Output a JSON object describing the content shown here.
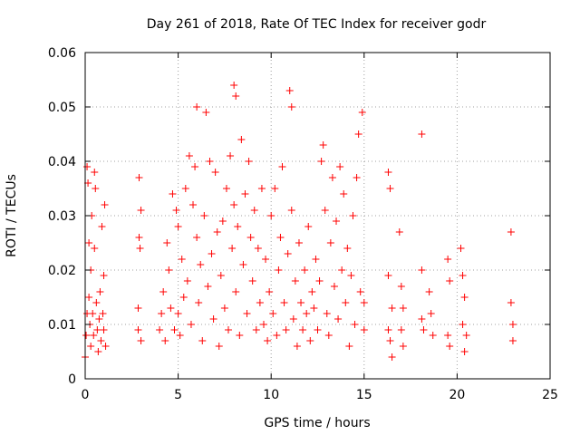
{
  "chart_data": {
    "type": "scatter",
    "title": "Day 261 of 2018, Rate Of TEC Index for receiver godr",
    "xlabel": "GPS time / hours",
    "ylabel": "ROTI / TECUs",
    "xlim": [
      0,
      25
    ],
    "ylim": [
      0,
      0.06
    ],
    "xticks": [
      0,
      5,
      10,
      15,
      20,
      25
    ],
    "xtick_labels": [
      "0",
      "5",
      "10",
      "15",
      "20",
      "25"
    ],
    "yticks": [
      0,
      0.01,
      0.02,
      0.03,
      0.04,
      0.05,
      0.06
    ],
    "ytick_labels": [
      "0",
      "0.01",
      "0.02",
      "0.03",
      "0.04",
      "0.05",
      "0.06"
    ],
    "grid": true,
    "marker": "plus",
    "marker_color": "#ff0000",
    "series": [
      {
        "name": "ROTI",
        "points": [
          [
            0.0,
            0.004
          ],
          [
            0.05,
            0.008
          ],
          [
            0.1,
            0.012
          ],
          [
            0.1,
            0.039
          ],
          [
            0.15,
            0.036
          ],
          [
            0.2,
            0.025
          ],
          [
            0.2,
            0.015
          ],
          [
            0.25,
            0.01
          ],
          [
            0.3,
            0.006
          ],
          [
            0.3,
            0.02
          ],
          [
            0.35,
            0.03
          ],
          [
            0.4,
            0.012
          ],
          [
            0.45,
            0.008
          ],
          [
            0.5,
            0.038
          ],
          [
            0.5,
            0.024
          ],
          [
            0.55,
            0.035
          ],
          [
            0.6,
            0.014
          ],
          [
            0.65,
            0.009
          ],
          [
            0.7,
            0.005
          ],
          [
            0.75,
            0.011
          ],
          [
            0.8,
            0.016
          ],
          [
            0.85,
            0.007
          ],
          [
            0.9,
            0.028
          ],
          [
            0.95,
            0.012
          ],
          [
            1.0,
            0.009
          ],
          [
            1.0,
            0.019
          ],
          [
            1.05,
            0.032
          ],
          [
            1.1,
            0.006
          ],
          [
            2.85,
            0.013
          ],
          [
            2.85,
            0.009
          ],
          [
            2.9,
            0.037
          ],
          [
            2.9,
            0.026
          ],
          [
            2.95,
            0.024
          ],
          [
            3.0,
            0.007
          ],
          [
            3.0,
            0.031
          ],
          [
            4.0,
            0.009
          ],
          [
            4.1,
            0.012
          ],
          [
            4.2,
            0.016
          ],
          [
            4.3,
            0.007
          ],
          [
            4.4,
            0.025
          ],
          [
            4.5,
            0.02
          ],
          [
            4.6,
            0.013
          ],
          [
            4.7,
            0.034
          ],
          [
            4.8,
            0.009
          ],
          [
            4.9,
            0.031
          ],
          [
            5.0,
            0.028
          ],
          [
            5.0,
            0.012
          ],
          [
            5.1,
            0.008
          ],
          [
            5.2,
            0.022
          ],
          [
            5.3,
            0.015
          ],
          [
            5.4,
            0.035
          ],
          [
            5.5,
            0.018
          ],
          [
            5.6,
            0.041
          ],
          [
            5.7,
            0.01
          ],
          [
            5.8,
            0.032
          ],
          [
            5.9,
            0.039
          ],
          [
            6.0,
            0.05
          ],
          [
            6.0,
            0.026
          ],
          [
            6.1,
            0.014
          ],
          [
            6.2,
            0.021
          ],
          [
            6.3,
            0.007
          ],
          [
            6.4,
            0.03
          ],
          [
            6.5,
            0.049
          ],
          [
            6.6,
            0.017
          ],
          [
            6.7,
            0.04
          ],
          [
            6.8,
            0.023
          ],
          [
            6.9,
            0.011
          ],
          [
            7.0,
            0.038
          ],
          [
            7.1,
            0.027
          ],
          [
            7.2,
            0.006
          ],
          [
            7.3,
            0.019
          ],
          [
            7.4,
            0.029
          ],
          [
            7.5,
            0.013
          ],
          [
            7.6,
            0.035
          ],
          [
            7.7,
            0.009
          ],
          [
            7.8,
            0.041
          ],
          [
            7.9,
            0.024
          ],
          [
            8.0,
            0.054
          ],
          [
            8.0,
            0.032
          ],
          [
            8.1,
            0.052
          ],
          [
            8.1,
            0.016
          ],
          [
            8.2,
            0.028
          ],
          [
            8.3,
            0.008
          ],
          [
            8.4,
            0.044
          ],
          [
            8.5,
            0.021
          ],
          [
            8.6,
            0.034
          ],
          [
            8.7,
            0.012
          ],
          [
            8.8,
            0.04
          ],
          [
            8.9,
            0.026
          ],
          [
            9.0,
            0.018
          ],
          [
            9.1,
            0.031
          ],
          [
            9.2,
            0.009
          ],
          [
            9.3,
            0.024
          ],
          [
            9.4,
            0.014
          ],
          [
            9.5,
            0.035
          ],
          [
            9.6,
            0.01
          ],
          [
            9.7,
            0.022
          ],
          [
            9.8,
            0.007
          ],
          [
            9.9,
            0.016
          ],
          [
            10.0,
            0.03
          ],
          [
            10.1,
            0.012
          ],
          [
            10.2,
            0.035
          ],
          [
            10.3,
            0.008
          ],
          [
            10.4,
            0.02
          ],
          [
            10.5,
            0.026
          ],
          [
            10.6,
            0.039
          ],
          [
            10.7,
            0.014
          ],
          [
            10.8,
            0.009
          ],
          [
            10.9,
            0.023
          ],
          [
            11.0,
            0.053
          ],
          [
            11.1,
            0.05
          ],
          [
            11.1,
            0.031
          ],
          [
            11.2,
            0.011
          ],
          [
            11.3,
            0.018
          ],
          [
            11.4,
            0.006
          ],
          [
            11.5,
            0.025
          ],
          [
            11.6,
            0.014
          ],
          [
            11.7,
            0.009
          ],
          [
            11.8,
            0.02
          ],
          [
            11.9,
            0.012
          ],
          [
            12.0,
            0.028
          ],
          [
            12.1,
            0.007
          ],
          [
            12.2,
            0.016
          ],
          [
            12.3,
            0.013
          ],
          [
            12.4,
            0.022
          ],
          [
            12.5,
            0.009
          ],
          [
            12.6,
            0.018
          ],
          [
            12.7,
            0.04
          ],
          [
            12.8,
            0.043
          ],
          [
            12.9,
            0.031
          ],
          [
            13.0,
            0.012
          ],
          [
            13.1,
            0.008
          ],
          [
            13.2,
            0.025
          ],
          [
            13.3,
            0.037
          ],
          [
            13.4,
            0.017
          ],
          [
            13.5,
            0.029
          ],
          [
            13.6,
            0.011
          ],
          [
            13.7,
            0.039
          ],
          [
            13.8,
            0.02
          ],
          [
            13.9,
            0.034
          ],
          [
            14.0,
            0.014
          ],
          [
            14.1,
            0.024
          ],
          [
            14.2,
            0.006
          ],
          [
            14.3,
            0.019
          ],
          [
            14.4,
            0.03
          ],
          [
            14.5,
            0.01
          ],
          [
            14.6,
            0.037
          ],
          [
            14.7,
            0.045
          ],
          [
            14.8,
            0.016
          ],
          [
            14.9,
            0.049
          ],
          [
            15.0,
            0.014
          ],
          [
            15.0,
            0.009
          ],
          [
            16.3,
            0.038
          ],
          [
            16.3,
            0.019
          ],
          [
            16.3,
            0.009
          ],
          [
            16.4,
            0.035
          ],
          [
            16.4,
            0.007
          ],
          [
            16.5,
            0.013
          ],
          [
            16.5,
            0.004
          ],
          [
            16.9,
            0.027
          ],
          [
            17.0,
            0.017
          ],
          [
            17.0,
            0.009
          ],
          [
            17.1,
            0.013
          ],
          [
            17.1,
            0.006
          ],
          [
            18.1,
            0.045
          ],
          [
            18.1,
            0.02
          ],
          [
            18.1,
            0.011
          ],
          [
            18.2,
            0.009
          ],
          [
            18.5,
            0.016
          ],
          [
            18.6,
            0.012
          ],
          [
            18.7,
            0.008
          ],
          [
            19.5,
            0.022
          ],
          [
            19.5,
            0.008
          ],
          [
            19.6,
            0.018
          ],
          [
            19.6,
            0.006
          ],
          [
            20.2,
            0.024
          ],
          [
            20.3,
            0.019
          ],
          [
            20.3,
            0.01
          ],
          [
            20.4,
            0.015
          ],
          [
            20.4,
            0.005
          ],
          [
            20.5,
            0.008
          ],
          [
            22.9,
            0.027
          ],
          [
            22.9,
            0.014
          ],
          [
            23.0,
            0.01
          ],
          [
            23.0,
            0.007
          ]
        ]
      }
    ]
  }
}
